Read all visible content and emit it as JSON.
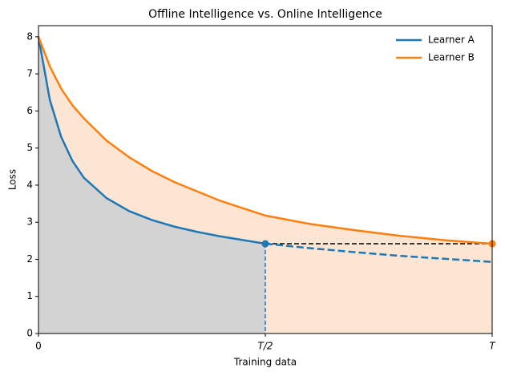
{
  "chart_data": {
    "type": "line",
    "title": "Offline Intelligence vs. Online Intelligence",
    "x_label": "Training data",
    "y_label": "Loss",
    "xlim": [
      0,
      1
    ],
    "ylim": [
      0,
      8.3
    ],
    "xticks": [
      0,
      {
        "value": 0.5,
        "label": "T/2"
      },
      {
        "value": 1,
        "label": "T"
      }
    ],
    "yticks": [
      0,
      1,
      2,
      3,
      4,
      5,
      6,
      7,
      8
    ],
    "legend": "upper right",
    "series": [
      {
        "name": "Learner A",
        "color": "#1f77b4",
        "fill": "#d3d3d3",
        "linestyle": "solid",
        "marker": "end",
        "x": [
          0,
          0.025,
          0.05,
          0.075,
          0.1,
          0.15,
          0.2,
          0.25,
          0.3,
          0.35,
          0.4,
          0.45,
          0.5
        ],
        "values": [
          8,
          6.3,
          5.3,
          4.65,
          4.2,
          3.65,
          3.3,
          3.06,
          2.88,
          2.74,
          2.62,
          2.52,
          2.42
        ]
      },
      {
        "name": "Learner B",
        "color": "#ff7f0e",
        "fill": "#fde5d3",
        "linestyle": "solid",
        "marker": "end",
        "x": [
          0,
          0.025,
          0.05,
          0.075,
          0.1,
          0.15,
          0.2,
          0.25,
          0.3,
          0.4,
          0.5,
          0.6,
          0.7,
          0.8,
          0.9,
          1
        ],
        "values": [
          8,
          7.2,
          6.6,
          6.15,
          5.8,
          5.2,
          4.75,
          4.38,
          4.08,
          3.58,
          3.18,
          2.95,
          2.78,
          2.63,
          2.51,
          2.42
        ]
      },
      {
        "color": "#1f77b4",
        "linestyle": "dashed",
        "x": [
          0.5,
          0.6,
          0.7,
          0.8,
          0.9,
          1
        ],
        "values": [
          2.42,
          2.3,
          2.19,
          2.09,
          2.01,
          1.93
        ]
      }
    ]
  }
}
